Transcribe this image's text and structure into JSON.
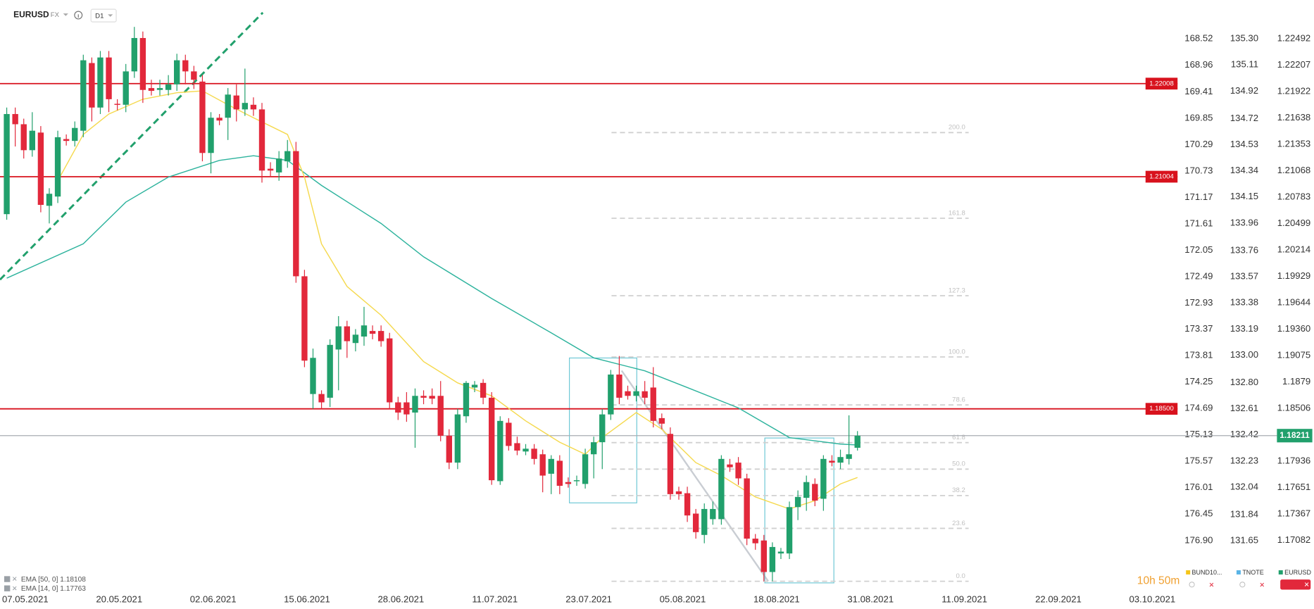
{
  "chart_data": {
    "type": "candlestick",
    "symbol": "EURUSD",
    "market": "FX",
    "interval": "D1",
    "x_labels": [
      "07.05.2021",
      "20.05.2021",
      "02.06.2021",
      "15.06.2021",
      "28.06.2021",
      "11.07.2021",
      "23.07.2021",
      "05.08.2021",
      "18.08.2021",
      "31.08.2021",
      "11.09.2021",
      "22.09.2021",
      "03.10.2021"
    ],
    "up_color": "#21a06c",
    "down_color": "#e2283b",
    "open": [
      1.206,
      1.2168,
      1.2157,
      1.2129,
      1.2148,
      1.2069,
      1.2079,
      1.2141,
      1.2139,
      1.215,
      1.2223,
      1.2175,
      1.2229,
      1.2179,
      1.2178,
      1.2214,
      1.225,
      1.2196,
      1.2194,
      1.2194,
      1.22,
      1.2226,
      1.2214,
      1.2203,
      1.2126,
      1.2164,
      1.2164,
      1.2188,
      1.2173,
      1.2178,
      1.2173,
      1.2109,
      1.2105,
      1.2117,
      1.2128,
      1.1993,
      1.1866,
      1.1866,
      1.1862,
      1.1914,
      1.1939,
      1.1921,
      1.1928,
      1.1934,
      1.1934,
      1.1926,
      1.1857,
      1.1857,
      1.1846,
      1.1864,
      1.1864,
      1.1864,
      1.1821,
      1.1792,
      1.1842,
      1.1873,
      1.1878,
      1.1862,
      1.1772,
      1.1835,
      1.1813,
      1.1804,
      1.1807,
      1.1801,
      1.178,
      1.1794,
      1.1771,
      1.1772,
      1.1769,
      1.1801,
      1.1814,
      1.1844,
      1.1887,
      1.1869,
      1.1864,
      1.1869,
      1.1873,
      1.184,
      1.1823,
      1.1761,
      1.1759,
      1.1737,
      1.1714,
      1.1731,
      1.1731,
      1.179,
      1.1792,
      1.1775,
      1.171,
      1.1708,
      1.1674,
      1.1694,
      1.1694,
      1.1744,
      1.1754,
      1.1769,
      1.1753,
      1.1794,
      1.1792,
      1.1796,
      1.1808
    ],
    "high": [
      1.2175,
      1.2175,
      1.2163,
      1.217,
      1.2155,
      1.2088,
      1.215,
      1.2146,
      1.216,
      1.2232,
      1.2229,
      1.2236,
      1.2236,
      1.2184,
      1.2222,
      1.2262,
      1.2257,
      1.2205,
      1.2205,
      1.221,
      1.2233,
      1.2232,
      1.222,
      1.221,
      1.217,
      1.2168,
      1.2196,
      1.22,
      1.2217,
      1.2186,
      1.218,
      1.2116,
      1.2128,
      1.214,
      1.2138,
      1.2,
      1.1915,
      1.187,
      1.1925,
      1.195,
      1.1945,
      1.1936,
      1.196,
      1.194,
      1.194,
      1.1932,
      1.1863,
      1.1868,
      1.1872,
      1.187,
      1.1872,
      1.188,
      1.1828,
      1.185,
      1.188,
      1.188,
      1.1882,
      1.1868,
      1.1842,
      1.184,
      1.182,
      1.1812,
      1.1812,
      1.1806,
      1.18,
      1.18,
      1.1776,
      1.1778,
      1.1807,
      1.182,
      1.185,
      1.1892,
      1.1907,
      1.1875,
      1.1875,
      1.188,
      1.1895,
      1.1845,
      1.183,
      1.1766,
      1.1766,
      1.1742,
      1.1748,
      1.175,
      1.18,
      1.1796,
      1.1798,
      1.178,
      1.1715,
      1.1714,
      1.1706,
      1.17,
      1.175,
      1.1762,
      1.1778,
      1.1775,
      1.18,
      1.18,
      1.1806,
      1.1843,
      1.1826
    ],
    "low": [
      1.2054,
      1.2133,
      1.212,
      1.2122,
      1.2062,
      1.205,
      1.2072,
      1.2134,
      1.2133,
      1.2143,
      1.216,
      1.2168,
      1.217,
      1.2172,
      1.217,
      1.2207,
      1.218,
      1.2188,
      1.2188,
      1.2188,
      1.2193,
      1.22,
      1.2195,
      1.2117,
      1.2104,
      1.2156,
      1.214,
      1.216,
      1.2166,
      1.2166,
      1.2094,
      1.21,
      1.2096,
      1.211,
      1.1986,
      1.1895,
      1.185,
      1.185,
      1.1852,
      1.187,
      1.1905,
      1.1912,
      1.1918,
      1.1925,
      1.1917,
      1.185,
      1.1838,
      1.1836,
      1.1808,
      1.1855,
      1.1855,
      1.1815,
      1.1785,
      1.1785,
      1.1835,
      1.1868,
      1.1855,
      1.1768,
      1.1768,
      1.1805,
      1.18,
      1.18,
      1.179,
      1.176,
      1.1758,
      1.1758,
      1.1765,
      1.1767,
      1.1764,
      1.1775,
      1.1785,
      1.1838,
      1.1855,
      1.186,
      1.1858,
      1.1855,
      1.183,
      1.1828,
      1.1752,
      1.1752,
      1.1728,
      1.171,
      1.1705,
      1.1725,
      1.1725,
      1.1782,
      1.1768,
      1.1703,
      1.1698,
      1.1664,
      1.1664,
      1.1688,
      1.1688,
      1.173,
      1.174,
      1.1745,
      1.174,
      1.1788,
      1.1785,
      1.179,
      1.1805
    ],
    "close": [
      1.2168,
      1.2157,
      1.2129,
      1.215,
      1.207,
      1.2082,
      1.2143,
      1.2139,
      1.2153,
      1.2226,
      1.2175,
      1.2229,
      1.2184,
      1.2178,
      1.2214,
      1.225,
      1.2194,
      1.2193,
      1.2196,
      1.22,
      1.2226,
      1.2214,
      1.2205,
      1.2126,
      1.2164,
      1.2161,
      1.2189,
      1.2173,
      1.218,
      1.2173,
      1.2107,
      1.2107,
      1.212,
      1.2128,
      1.1993,
      1.1902,
      1.1905,
      1.1857,
      1.1919,
      1.1939,
      1.1923,
      1.193,
      1.194,
      1.1931,
      1.1923,
      1.1857,
      1.1846,
      1.1844,
      1.1864,
      1.1862,
      1.1861,
      1.1821,
      1.1792,
      1.1844,
      1.1878,
      1.1876,
      1.1862,
      1.1773,
      1.1837,
      1.181,
      1.1805,
      1.1807,
      1.1796,
      1.1778,
      1.1796,
      1.1767,
      1.1769,
      1.1773,
      1.1801,
      1.1814,
      1.1844,
      1.1887,
      1.1862,
      1.1864,
      1.1869,
      1.1862,
      1.1837,
      1.1834,
      1.1758,
      1.1758,
      1.1735,
      1.1717,
      1.1742,
      1.1742,
      1.1796,
      1.1787,
      1.1775,
      1.171,
      1.1705,
      1.1674,
      1.1701,
      1.1696,
      1.1744,
      1.1755,
      1.1771,
      1.1751,
      1.1796,
      1.1792,
      1.1798,
      1.1801,
      1.1821
    ],
    "ylim": [
      1.1655,
      1.2291
    ],
    "yticks": [
      1.22492,
      1.22207,
      1.21922,
      1.21638,
      1.21353,
      1.21068,
      1.20783,
      1.20499,
      1.20214,
      1.19929,
      1.19644,
      {
        "value": 1.1936,
        "label": "1.19360"
      },
      1.19075,
      1.1879,
      1.18506,
      1.17936,
      1.17651,
      1.17367,
      1.17082
    ],
    "secondary_axes": [
      {
        "lim": [
          177.715,
          167.873
        ],
        "ticks": [
          168.52,
          168.96,
          169.41,
          169.85,
          170.29,
          170.73,
          171.17,
          171.61,
          172.05,
          172.49,
          172.93,
          173.37,
          173.81,
          174.25,
          174.69,
          175.13,
          175.57,
          176.01,
          176.45,
          {
            "value": 176.9,
            "label": "176.90"
          }
        ]
      },
      {
        "lim": [
          131.295,
          135.582
        ],
        "ticks": [
          {
            "value": 135.3,
            "label": "135.30"
          },
          135.11,
          134.92,
          134.72,
          134.53,
          134.34,
          134.15,
          133.96,
          133.76,
          133.57,
          133.38,
          133.19,
          {
            "value": 133.0,
            "label": "133.00"
          },
          {
            "value": 132.8,
            "label": "132.80"
          },
          132.61,
          132.42,
          132.23,
          132.04,
          131.84,
          131.65
        ]
      }
    ],
    "levels": {
      "values": [
        1.22008,
        1.21004,
        1.185
      ],
      "value_labels": [
        "1.22008",
        "1.21004",
        "1.18500"
      ],
      "color": "#d8121d"
    },
    "current_price": {
      "value": 1.18211,
      "color": "#21a06c"
    },
    "fibonacci": {
      "low": 1.1664,
      "high": 1.1906,
      "levels": [
        200,
        161.8,
        127.3,
        100,
        78.6,
        61.8,
        50,
        38.2,
        23.6,
        0
      ],
      "value_labels": [
        "200.0",
        "161.8",
        "127.3",
        "100.0",
        "78.6",
        "61.8",
        "50.0",
        "38.2",
        "23.6",
        "0.0"
      ]
    },
    "ema": [
      {
        "label": "EMA [50, 0] 1.18108",
        "color": "#2db39d",
        "index": [
          0,
          9,
          14,
          19,
          25,
          29,
          33,
          37,
          44,
          49,
          57,
          64,
          69,
          75,
          80,
          86,
          92,
          98,
          100
        ],
        "values": [
          1.1991,
          1.2028,
          1.2073,
          1.21,
          1.2118,
          1.2123,
          1.2118,
          1.2091,
          1.205,
          1.2014,
          1.1969,
          1.1932,
          1.1905,
          1.1891,
          1.1873,
          1.1851,
          1.1819,
          1.1812,
          1.1811
        ]
      },
      {
        "label": "EMA [14, 0] 1.17763",
        "color": "#f5d94e",
        "index": [
          6,
          9,
          12,
          16,
          20,
          23,
          26,
          29,
          33,
          35,
          37,
          40,
          44,
          49,
          53,
          57,
          61,
          65,
          68,
          70,
          74,
          77,
          81,
          84,
          88,
          92,
          95,
          98,
          100
        ],
        "values": [
          1.2096,
          1.2146,
          1.2168,
          1.2184,
          1.2191,
          1.2193,
          1.2178,
          1.2164,
          1.2146,
          1.21,
          1.2028,
          1.1982,
          1.1951,
          1.1901,
          1.1878,
          1.1864,
          1.1837,
          1.1814,
          1.1801,
          1.1819,
          1.1846,
          1.1828,
          1.1792,
          1.1778,
          1.1755,
          1.1742,
          1.1751,
          1.1769,
          1.1776
        ]
      }
    ],
    "countdown": "10h 50m",
    "legend": [
      {
        "name": "BUND10...",
        "color": "#f5c518"
      },
      {
        "name": "TNOTE",
        "color": "#5ab4e6"
      },
      {
        "name": "EURUSD",
        "color": "#21a06c"
      }
    ]
  }
}
